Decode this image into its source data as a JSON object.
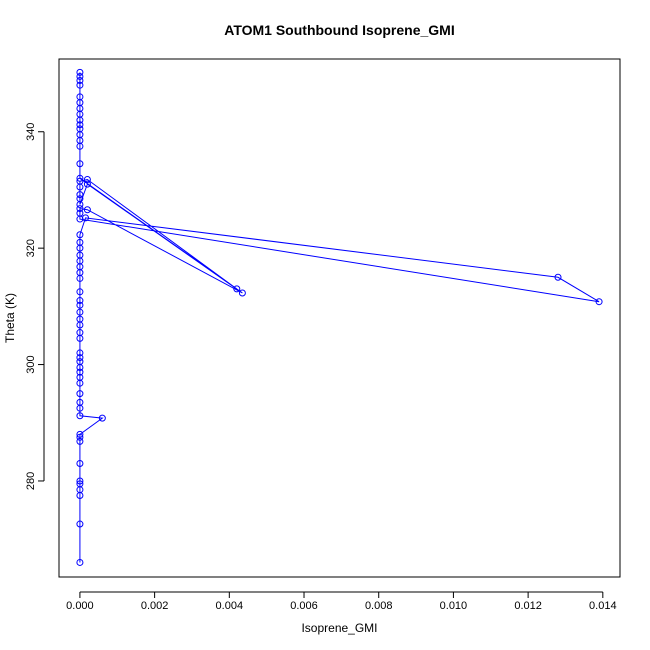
{
  "chart_data": {
    "type": "line",
    "title": "ATOM1 Southbound Isoprene_GMI",
    "xlabel": "Isoprene_GMI",
    "ylabel": "Theta (K)",
    "xlim": [
      -0.00056,
      0.01446
    ],
    "ylim": [
      263.5,
      352.5
    ],
    "xticks": [
      0,
      0.002,
      0.004,
      0.006,
      0.008,
      0.01,
      0.012,
      0.014
    ],
    "xtick_labels": [
      "0.000",
      "0.002",
      "0.004",
      "0.006",
      "0.008",
      "0.010",
      "0.012",
      "0.014"
    ],
    "yticks": [
      280,
      300,
      320,
      340
    ],
    "ytick_labels": [
      "280",
      "300",
      "320",
      "340"
    ],
    "grid": false,
    "legend": "none",
    "color": "#0000ff",
    "series": [
      {
        "marker": "open-circle",
        "line": true,
        "points": [
          [
            0.0,
            266.0
          ],
          [
            0.0,
            272.6
          ],
          [
            0.0,
            277.5
          ],
          [
            0.0,
            278.5
          ],
          [
            0.0,
            279.5
          ],
          [
            0.0,
            280.0
          ],
          [
            0.0,
            283.0
          ],
          [
            0.0,
            286.8
          ],
          [
            0.0,
            287.5
          ],
          [
            0.0,
            288.0
          ],
          [
            0.0006,
            290.8
          ],
          [
            0.0,
            291.2
          ],
          [
            0.0,
            292.5
          ],
          [
            0.0,
            293.5
          ],
          [
            0.0,
            295.0
          ],
          [
            0.0,
            296.8
          ],
          [
            0.0,
            297.8
          ],
          [
            0.0,
            298.7
          ],
          [
            0.0,
            299.5
          ],
          [
            0.0,
            300.5
          ],
          [
            0.0,
            301.2
          ],
          [
            0.0,
            302.0
          ],
          [
            0.0,
            304.5
          ],
          [
            0.0,
            305.5
          ],
          [
            0.0,
            306.8
          ],
          [
            0.0,
            307.8
          ],
          [
            0.0,
            309.0
          ],
          [
            0.0,
            310.2
          ],
          [
            0.0,
            311.0
          ],
          [
            0.0,
            312.5
          ],
          [
            0.0,
            314.8
          ],
          [
            0.0,
            315.8
          ],
          [
            0.0,
            316.8
          ],
          [
            0.0,
            317.8
          ],
          [
            0.0,
            318.8
          ],
          [
            0.0,
            320.0
          ],
          [
            0.0,
            321.0
          ],
          [
            0.0,
            322.3
          ],
          [
            0.00015,
            325.2
          ],
          [
            0.0128,
            315.0
          ],
          [
            0.0139,
            310.8
          ],
          [
            0.0,
            325.0
          ],
          [
            0.0,
            326.0
          ],
          [
            0.0,
            326.8
          ],
          [
            0.0002,
            326.6
          ],
          [
            0.00435,
            312.3
          ],
          [
            0.0002,
            331.0
          ],
          [
            0.0,
            327.5
          ],
          [
            0.0,
            328.5
          ],
          [
            0.0,
            329.2
          ],
          [
            0.0,
            330.5
          ],
          [
            0.0,
            331.5
          ],
          [
            0.0002,
            331.8
          ],
          [
            0.0042,
            313.0
          ],
          [
            0.0,
            332.0
          ],
          [
            0.0,
            334.5
          ],
          [
            0.0,
            337.5
          ],
          [
            0.0,
            338.5
          ],
          [
            0.0,
            339.5
          ],
          [
            0.0,
            340.5
          ],
          [
            0.0,
            341.2
          ],
          [
            0.0,
            342.0
          ],
          [
            0.0,
            343.0
          ],
          [
            0.0,
            344.0
          ],
          [
            0.0,
            345.0
          ],
          [
            0.0,
            346.0
          ],
          [
            0.0,
            348.0
          ],
          [
            0.0,
            348.8
          ],
          [
            0.0,
            349.5
          ],
          [
            0.0,
            350.2
          ]
        ]
      }
    ]
  }
}
